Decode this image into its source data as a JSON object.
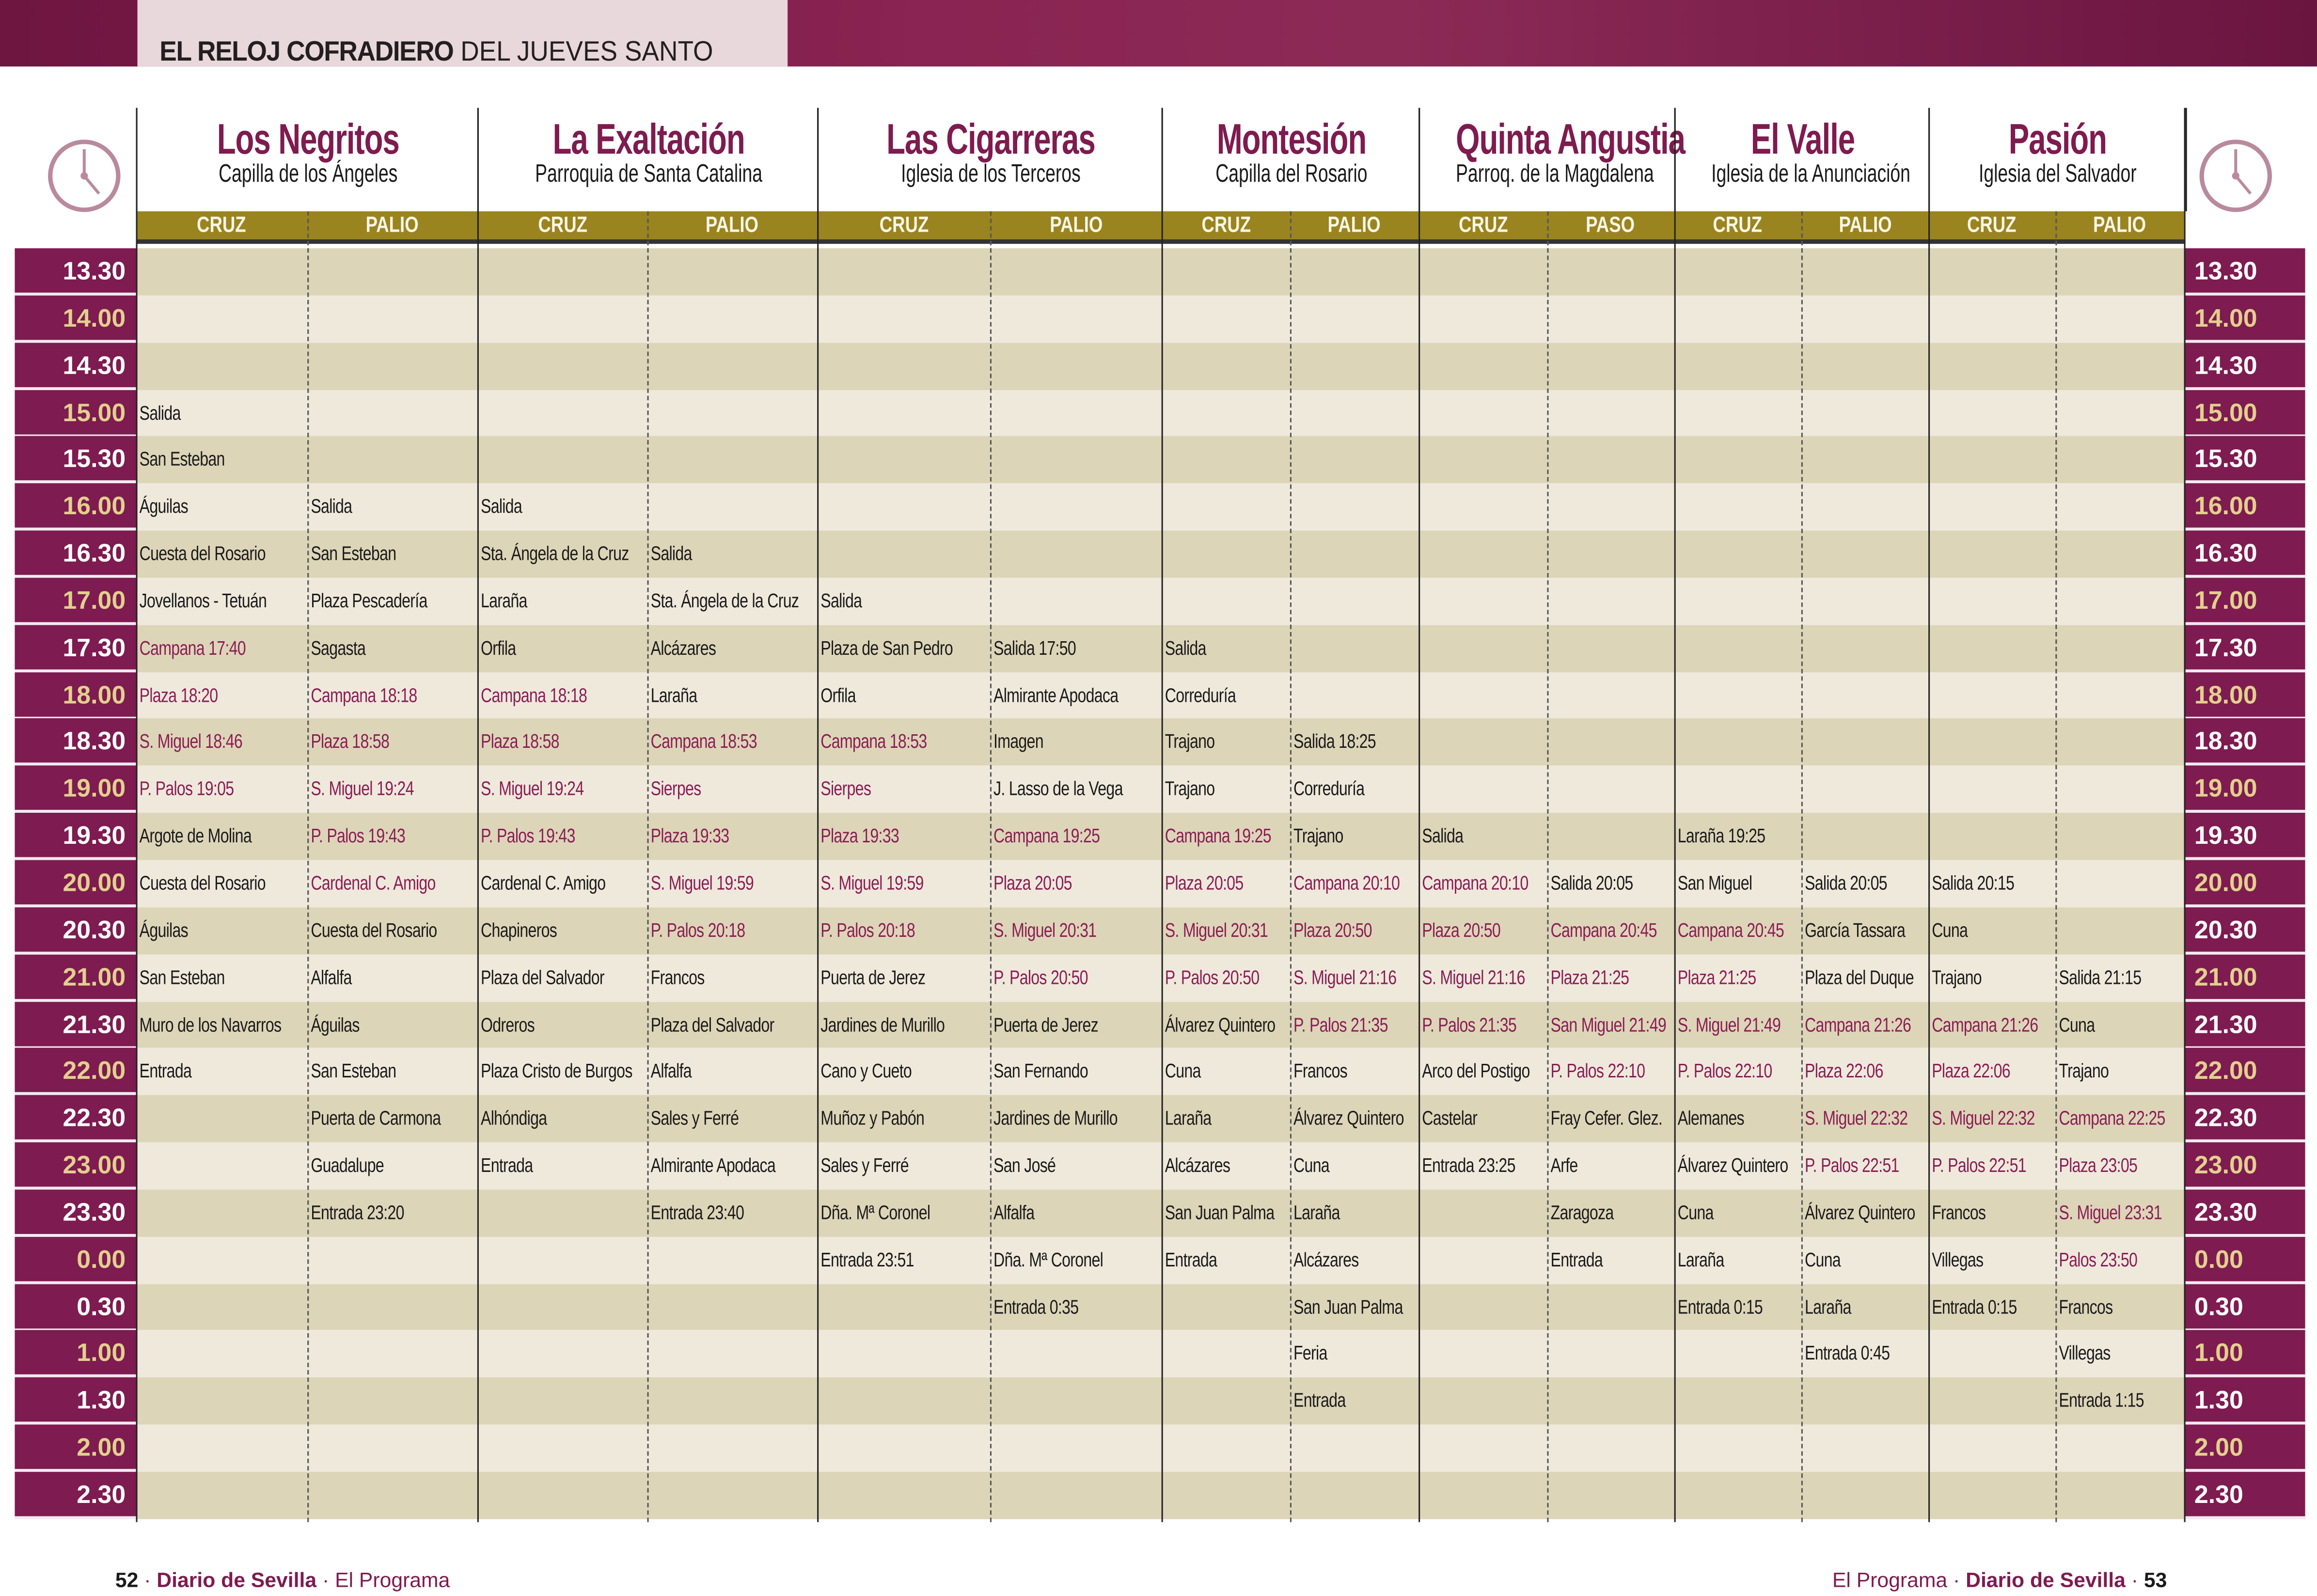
{
  "header": {
    "title_bold": "EL RELOJ COFRADIERO",
    "title_rest": "DEL JUEVES SANTO"
  },
  "colors": {
    "brand": "#7e1b50",
    "gold_band": "#9a8420",
    "row_dark": "#ddd5b8",
    "row_light": "#efe9dc",
    "highlight_text": "#8a1d55",
    "hour_text": "#e2cf8e"
  },
  "brotherhoods": [
    {
      "name": "Los Negritos",
      "church": "Capilla de los Ángeles",
      "sub": [
        "CRUZ",
        "PALIO"
      ]
    },
    {
      "name": "La Exaltación",
      "church": "Parroquia de Santa Catalina",
      "sub": [
        "CRUZ",
        "PALIO"
      ]
    },
    {
      "name": "Las Cigarreras",
      "church": "Iglesia de los Terceros",
      "sub": [
        "CRUZ",
        "PALIO"
      ]
    },
    {
      "name": "Montesión",
      "church": "Capilla del Rosario",
      "sub": [
        "CRUZ",
        "PALIO"
      ]
    },
    {
      "name": "Quinta Angustia",
      "church": "Parroq. de la Magdalena",
      "sub": [
        "CRUZ",
        "PASO"
      ]
    },
    {
      "name": "El Valle",
      "church": "Iglesia de la Anunciación",
      "sub": [
        "CRUZ",
        "PALIO"
      ]
    },
    {
      "name": "Pasión",
      "church": "Iglesia del Salvador",
      "sub": [
        "CRUZ",
        "PALIO"
      ]
    }
  ],
  "rows": [
    {
      "time": "13.30",
      "cells": [
        "",
        "",
        "",
        "",
        "",
        "",
        "",
        "",
        "",
        "",
        "",
        "",
        "",
        ""
      ]
    },
    {
      "time": "14.00",
      "cells": [
        "",
        "",
        "",
        "",
        "",
        "",
        "",
        "",
        "",
        "",
        "",
        "",
        "",
        ""
      ]
    },
    {
      "time": "14.30",
      "cells": [
        "",
        "",
        "",
        "",
        "",
        "",
        "",
        "",
        "",
        "",
        "",
        "",
        "",
        ""
      ]
    },
    {
      "time": "15.00",
      "cells": [
        "Salida",
        "",
        "",
        "",
        "",
        "",
        "",
        "",
        "",
        "",
        "",
        "",
        "",
        ""
      ]
    },
    {
      "time": "15.30",
      "cells": [
        "San Esteban",
        "",
        "",
        "",
        "",
        "",
        "",
        "",
        "",
        "",
        "",
        "",
        "",
        ""
      ]
    },
    {
      "time": "16.00",
      "cells": [
        "Águilas",
        "Salida",
        "Salida",
        "",
        "",
        "",
        "",
        "",
        "",
        "",
        "",
        "",
        "",
        ""
      ]
    },
    {
      "time": "16.30",
      "cells": [
        "Cuesta del Rosario",
        "San Esteban",
        "Sta. Ángela de la Cruz",
        "Salida",
        "",
        "",
        "",
        "",
        "",
        "",
        "",
        "",
        "",
        ""
      ]
    },
    {
      "time": "17.00",
      "cells": [
        "Jovellanos - Tetuán",
        "Plaza Pescadería",
        "Laraña",
        "Sta. Ángela de la Cruz",
        "Salida",
        "",
        "",
        "",
        "",
        "",
        "",
        "",
        "",
        ""
      ]
    },
    {
      "time": "17.30",
      "cells": [
        {
          "t": "Campana 17:40",
          "hl": true
        },
        "Sagasta",
        "Orfila",
        "Alcázares",
        "Plaza de San Pedro",
        "Salida 17:50",
        "Salida",
        "",
        "",
        "",
        "",
        "",
        "",
        ""
      ]
    },
    {
      "time": "18.00",
      "cells": [
        {
          "t": "Plaza 18:20",
          "hl": true
        },
        {
          "t": "Campana 18:18",
          "hl": true
        },
        {
          "t": "Campana 18:18",
          "hl": true
        },
        "Laraña",
        "Orfila",
        "Almirante Apodaca",
        "Correduría",
        "",
        "",
        "",
        "",
        "",
        "",
        ""
      ]
    },
    {
      "time": "18.30",
      "cells": [
        {
          "t": "S. Miguel 18:46",
          "hl": true
        },
        {
          "t": "Plaza 18:58",
          "hl": true
        },
        {
          "t": "Plaza 18:58",
          "hl": true
        },
        {
          "t": "Campana 18:53",
          "hl": true
        },
        {
          "t": "Campana 18:53",
          "hl": true
        },
        "Imagen",
        "Trajano",
        "Salida 18:25",
        "",
        "",
        "",
        "",
        "",
        ""
      ]
    },
    {
      "time": "19.00",
      "cells": [
        {
          "t": "P. Palos 19:05",
          "hl": true
        },
        {
          "t": "S. Miguel 19:24",
          "hl": true
        },
        {
          "t": "S. Miguel 19:24",
          "hl": true
        },
        {
          "t": "Sierpes",
          "hl": true
        },
        {
          "t": "Sierpes",
          "hl": true
        },
        "J. Lasso de la Vega",
        "Trajano",
        "Correduría",
        "",
        "",
        "",
        "",
        "",
        ""
      ]
    },
    {
      "time": "19.30",
      "cells": [
        "Argote de Molina",
        {
          "t": "P. Palos 19:43",
          "hl": true
        },
        {
          "t": "P. Palos 19:43",
          "hl": true
        },
        {
          "t": "Plaza 19:33",
          "hl": true
        },
        {
          "t": "Plaza 19:33",
          "hl": true
        },
        {
          "t": "Campana 19:25",
          "hl": true
        },
        {
          "t": "Campana 19:25",
          "hl": true
        },
        "Trajano",
        "Salida",
        "",
        "Laraña 19:25",
        "",
        "",
        ""
      ]
    },
    {
      "time": "20.00",
      "cells": [
        "Cuesta del Rosario",
        {
          "t": "Cardenal C. Amigo",
          "hl": true
        },
        "Cardenal C. Amigo",
        {
          "t": "S. Miguel 19:59",
          "hl": true
        },
        {
          "t": "S. Miguel 19:59",
          "hl": true
        },
        {
          "t": "Plaza 20:05",
          "hl": true
        },
        {
          "t": "Plaza 20:05",
          "hl": true
        },
        {
          "t": "Campana 20:10",
          "hl": true
        },
        {
          "t": "Campana 20:10",
          "hl": true
        },
        "Salida 20:05",
        "San Miguel",
        "Salida 20:05",
        "Salida 20:15",
        ""
      ]
    },
    {
      "time": "20.30",
      "cells": [
        "Águilas",
        "Cuesta del Rosario",
        "Chapineros",
        {
          "t": "P. Palos 20:18",
          "hl": true
        },
        {
          "t": "P. Palos 20:18",
          "hl": true
        },
        {
          "t": "S. Miguel 20:31",
          "hl": true
        },
        {
          "t": "S. Miguel 20:31",
          "hl": true
        },
        {
          "t": "Plaza 20:50",
          "hl": true
        },
        {
          "t": "Plaza 20:50",
          "hl": true
        },
        {
          "t": "Campana 20:45",
          "hl": true
        },
        {
          "t": "Campana 20:45",
          "hl": true
        },
        "García Tassara",
        "Cuna",
        ""
      ]
    },
    {
      "time": "21.00",
      "cells": [
        "San Esteban",
        "Alfalfa",
        "Plaza del Salvador",
        "Francos",
        "Puerta de Jerez",
        {
          "t": "P. Palos 20:50",
          "hl": true
        },
        {
          "t": "P. Palos 20:50",
          "hl": true
        },
        {
          "t": "S. Miguel 21:16",
          "hl": true
        },
        {
          "t": "S. Miguel 21:16",
          "hl": true
        },
        {
          "t": "Plaza 21:25",
          "hl": true
        },
        {
          "t": "Plaza 21:25",
          "hl": true
        },
        "Plaza del Duque",
        "Trajano",
        "Salida 21:15"
      ]
    },
    {
      "time": "21.30",
      "cells": [
        "Muro de los Navarros",
        "Águilas",
        "Odreros",
        "Plaza del Salvador",
        "Jardines de Murillo",
        "Puerta de Jerez",
        "Álvarez Quintero",
        {
          "t": "P. Palos 21:35",
          "hl": true
        },
        {
          "t": "P. Palos 21:35",
          "hl": true
        },
        {
          "t": "San Miguel 21:49",
          "hl": true
        },
        {
          "t": "S. Miguel 21:49",
          "hl": true
        },
        {
          "t": "Campana 21:26",
          "hl": true
        },
        {
          "t": "Campana 21:26",
          "hl": true
        },
        "Cuna"
      ]
    },
    {
      "time": "22.00",
      "cells": [
        "Entrada",
        "San Esteban",
        "Plaza Cristo de Burgos",
        "Alfalfa",
        "Cano y Cueto",
        "San Fernando",
        "Cuna",
        "Francos",
        "Arco del Postigo",
        {
          "t": "P. Palos 22:10",
          "hl": true
        },
        {
          "t": "P. Palos 22:10",
          "hl": true
        },
        {
          "t": "Plaza 22:06",
          "hl": true
        },
        {
          "t": "Plaza 22:06",
          "hl": true
        },
        "Trajano"
      ]
    },
    {
      "time": "22.30",
      "cells": [
        "",
        "Puerta de Carmona",
        "Alhóndiga",
        "Sales y Ferré",
        "Muñoz y Pabón",
        "Jardines de Murillo",
        "Laraña",
        "Álvarez Quintero",
        "Castelar",
        "Fray Cefer. Glez.",
        "Alemanes",
        {
          "t": "S. Miguel 22:32",
          "hl": true
        },
        {
          "t": "S. Miguel 22:32",
          "hl": true
        },
        {
          "t": "Campana 22:25",
          "hl": true
        }
      ]
    },
    {
      "time": "23.00",
      "cells": [
        "",
        "Guadalupe",
        "Entrada",
        "Almirante Apodaca",
        "Sales y Ferré",
        "San José",
        "Alcázares",
        "Cuna",
        "Entrada 23:25",
        "Arfe",
        "Álvarez Quintero",
        {
          "t": "P. Palos 22:51",
          "hl": true
        },
        {
          "t": "P. Palos 22:51",
          "hl": true
        },
        {
          "t": "Plaza 23:05",
          "hl": true
        }
      ]
    },
    {
      "time": "23.30",
      "cells": [
        "",
        "Entrada 23:20",
        "",
        "Entrada 23:40",
        "Dña. Mª Coronel",
        "Alfalfa",
        "San Juan Palma",
        "Laraña",
        "",
        "Zaragoza",
        "Cuna",
        "Álvarez Quintero",
        "Francos",
        {
          "t": "S. Miguel 23:31",
          "hl": true
        }
      ]
    },
    {
      "time": "0.00",
      "cells": [
        "",
        "",
        "",
        "",
        "Entrada 23:51",
        "Dña. Mª Coronel",
        "Entrada",
        "Alcázares",
        "",
        "Entrada",
        "Laraña",
        "Cuna",
        "Villegas",
        {
          "t": "Palos 23:50",
          "hl": true
        }
      ]
    },
    {
      "time": "0.30",
      "cells": [
        "",
        "",
        "",
        "",
        "",
        "Entrada 0:35",
        "",
        "San Juan Palma",
        "",
        "",
        "Entrada 0:15",
        "Laraña",
        "Entrada 0:15",
        "Francos"
      ]
    },
    {
      "time": "1.00",
      "cells": [
        "",
        "",
        "",
        "",
        "",
        "",
        "",
        "Feria",
        "",
        "",
        "",
        "Entrada 0:45",
        "",
        "Villegas"
      ]
    },
    {
      "time": "1.30",
      "cells": [
        "",
        "",
        "",
        "",
        "",
        "",
        "",
        "Entrada",
        "",
        "",
        "",
        "",
        "",
        "Entrada 1:15"
      ]
    },
    {
      "time": "2.00",
      "cells": [
        "",
        "",
        "",
        "",
        "",
        "",
        "",
        "",
        "",
        "",
        "",
        "",
        "",
        ""
      ]
    },
    {
      "time": "2.30",
      "cells": [
        "",
        "",
        "",
        "",
        "",
        "",
        "",
        "",
        "",
        "",
        "",
        "",
        "",
        ""
      ]
    }
  ],
  "footer": {
    "left_page": "52",
    "left_paper": "Diario de Sevilla",
    "left_section": "El Programa",
    "right_section": "El Programa",
    "right_paper": "Diario de Sevilla",
    "right_page": "53"
  }
}
